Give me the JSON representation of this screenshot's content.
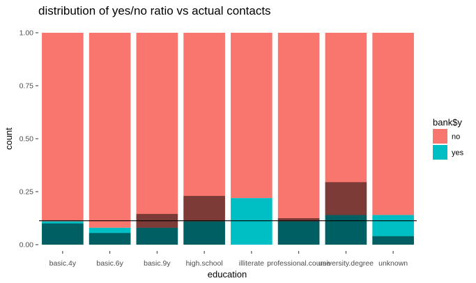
{
  "chart_data": {
    "type": "bar",
    "title": "distribution of yes/no ratio vs actual contacts",
    "xlabel": "education",
    "ylabel": "count",
    "ylim": [
      0,
      1
    ],
    "y_ticks": [
      "0.00",
      "0.25",
      "0.50",
      "0.75",
      "1.00"
    ],
    "y_tick_values": [
      0,
      0.25,
      0.5,
      0.75,
      1.0
    ],
    "categories": [
      "basic.4y",
      "basic.6y",
      "basic.9y",
      "high.school",
      "illiterate",
      "professional.course",
      "university.degree",
      "unknown"
    ],
    "series": [
      {
        "name": "no",
        "color": "#F8766D",
        "values": [
          0.89,
          0.92,
          0.92,
          0.89,
          0.78,
          0.89,
          0.86,
          0.86
        ]
      },
      {
        "name": "yes",
        "color": "#00BFC4",
        "values": [
          0.11,
          0.08,
          0.08,
          0.11,
          0.22,
          0.11,
          0.14,
          0.14
        ]
      }
    ],
    "overlay_bars": {
      "color": "#000000",
      "opacity": 0.5,
      "values": [
        0.1,
        0.055,
        0.145,
        0.23,
        0.0,
        0.125,
        0.295,
        0.04
      ]
    },
    "hline": {
      "y": 0.113,
      "color": "#000000"
    },
    "legend": {
      "title": "bank$y",
      "position": "right"
    },
    "grid": false
  }
}
